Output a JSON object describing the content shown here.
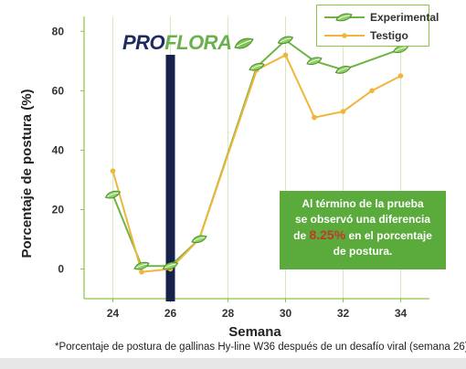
{
  "chart_data": {
    "type": "line",
    "title": "",
    "xlabel": "Semana",
    "ylabel": "Porcentaje de postura (%)",
    "xlim": [
      23,
      35
    ],
    "ylim": [
      -10,
      85
    ],
    "x_ticks": [
      24,
      26,
      28,
      30,
      32,
      34
    ],
    "y_ticks": [
      0,
      20,
      40,
      60,
      80
    ],
    "grid": "vertical",
    "legend_position": "top-right",
    "series": [
      {
        "name": "Experimental",
        "color": "#6fb344",
        "marker": "leaf-icon",
        "x": [
          24,
          25,
          26,
          27,
          29,
          30,
          31,
          32,
          34
        ],
        "values": [
          25,
          1,
          1,
          10,
          68,
          77,
          70,
          67,
          74
        ]
      },
      {
        "name": "Testigo",
        "color": "#f0b63c",
        "marker": "dot",
        "x": [
          24,
          25,
          26,
          27,
          29,
          30,
          31,
          32,
          33,
          34
        ],
        "values": [
          33,
          -1,
          0,
          10,
          67,
          72,
          51,
          53,
          60,
          65
        ]
      }
    ],
    "marker_line": {
      "x": 26,
      "color": "#17224a"
    }
  },
  "legend": {
    "items": [
      {
        "label": "Experimental",
        "color": "#6fb344",
        "icon": "leaf-icon"
      },
      {
        "label": "Testigo",
        "color": "#f0b63c",
        "icon": "dot"
      }
    ]
  },
  "logo": {
    "part1": "PRO",
    "part2": "FLORA",
    "icon": "leaf-icon"
  },
  "note": {
    "line1": "Al término de la prueba",
    "line2": "se observó una diferencia",
    "pre": "de ",
    "highlight": "8.25%",
    "post": " en el porcentaje",
    "line4": "de postura."
  },
  "footnote": "*Porcentaje de postura de gallinas Hy-line W36 después de un desafío viral (semana 26)"
}
